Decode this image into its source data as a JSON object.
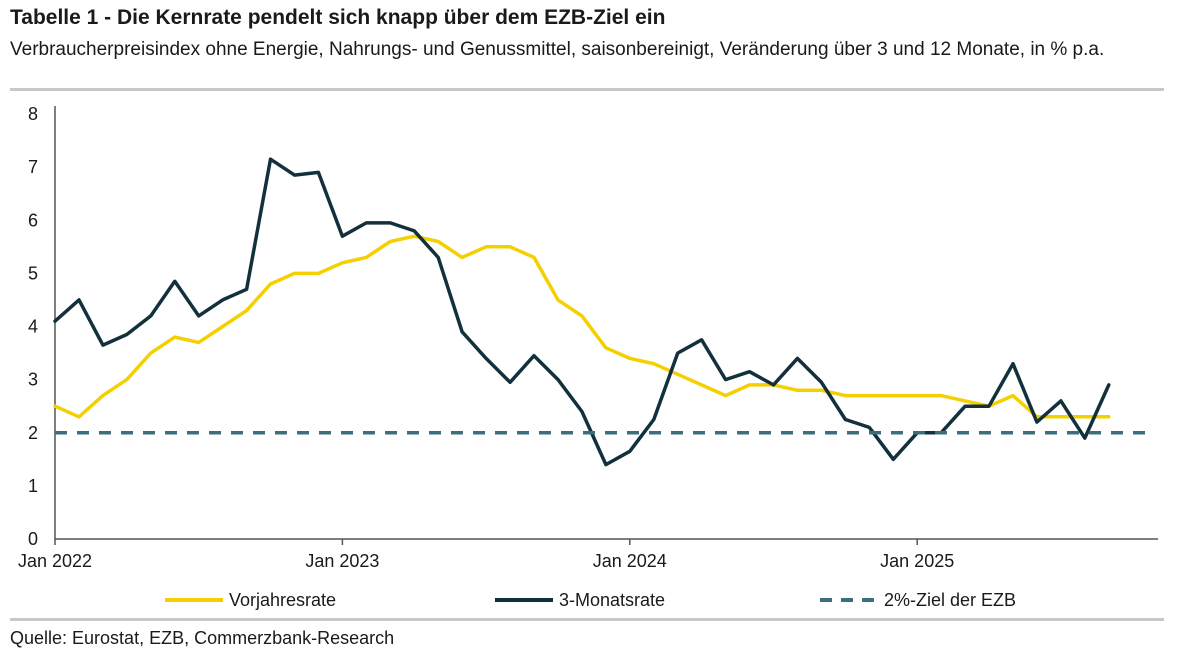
{
  "header": {
    "title": "Tabelle 1 - Die Kernrate pendelt sich knapp über dem EZB-Ziel ein",
    "subtitle": "Verbraucherpreisindex ohne Energie, Nahrungs- und Genussmittel, saisonbereinigt, Veränderung über 3 und 12 Monate, in % p.a."
  },
  "footer": {
    "source": "Quelle: Eurostat, EZB, Commerzbank-Research"
  },
  "chart_data": {
    "type": "line",
    "x_start": "Jan 2022",
    "x_tick_labels": [
      "Jan 2022",
      "Jan 2023",
      "Jan 2024",
      "Jan 2025"
    ],
    "y_tick_labels": [
      "0",
      "1",
      "2",
      "3",
      "4",
      "5",
      "6",
      "7",
      "8"
    ],
    "ylim": [
      0,
      8
    ],
    "series": [
      {
        "name": "Vorjahresrate",
        "color": "#f5d000",
        "style": "solid",
        "values": [
          2.5,
          2.3,
          2.7,
          3.0,
          3.5,
          3.8,
          3.7,
          4.0,
          4.3,
          4.8,
          5.0,
          5.0,
          5.2,
          5.3,
          5.6,
          5.7,
          5.6,
          5.3,
          5.5,
          5.5,
          5.3,
          4.5,
          4.2,
          3.6,
          3.4,
          3.3,
          3.1,
          2.9,
          2.7,
          2.9,
          2.9,
          2.8,
          2.8,
          2.7,
          2.7,
          2.7,
          2.7,
          2.7,
          2.6,
          2.5,
          2.7,
          2.3,
          2.3,
          2.3,
          2.3
        ]
      },
      {
        "name": "3-Monatsrate",
        "color": "#12313d",
        "style": "solid",
        "values": [
          4.1,
          4.5,
          3.65,
          3.85,
          4.2,
          4.85,
          4.2,
          4.5,
          4.7,
          7.15,
          6.85,
          6.9,
          5.7,
          5.95,
          5.95,
          5.8,
          5.3,
          3.9,
          3.4,
          2.95,
          3.45,
          3.0,
          2.4,
          1.4,
          1.65,
          2.25,
          3.5,
          3.75,
          3.0,
          3.15,
          2.9,
          3.4,
          2.95,
          2.25,
          2.1,
          1.5,
          2.0,
          2.0,
          2.5,
          2.5,
          3.3,
          2.2,
          2.6,
          1.9,
          2.9
        ]
      },
      {
        "name": "2%-Ziel der EZB",
        "color": "#3d6e7c",
        "style": "dashed",
        "constant": 2
      }
    ]
  }
}
